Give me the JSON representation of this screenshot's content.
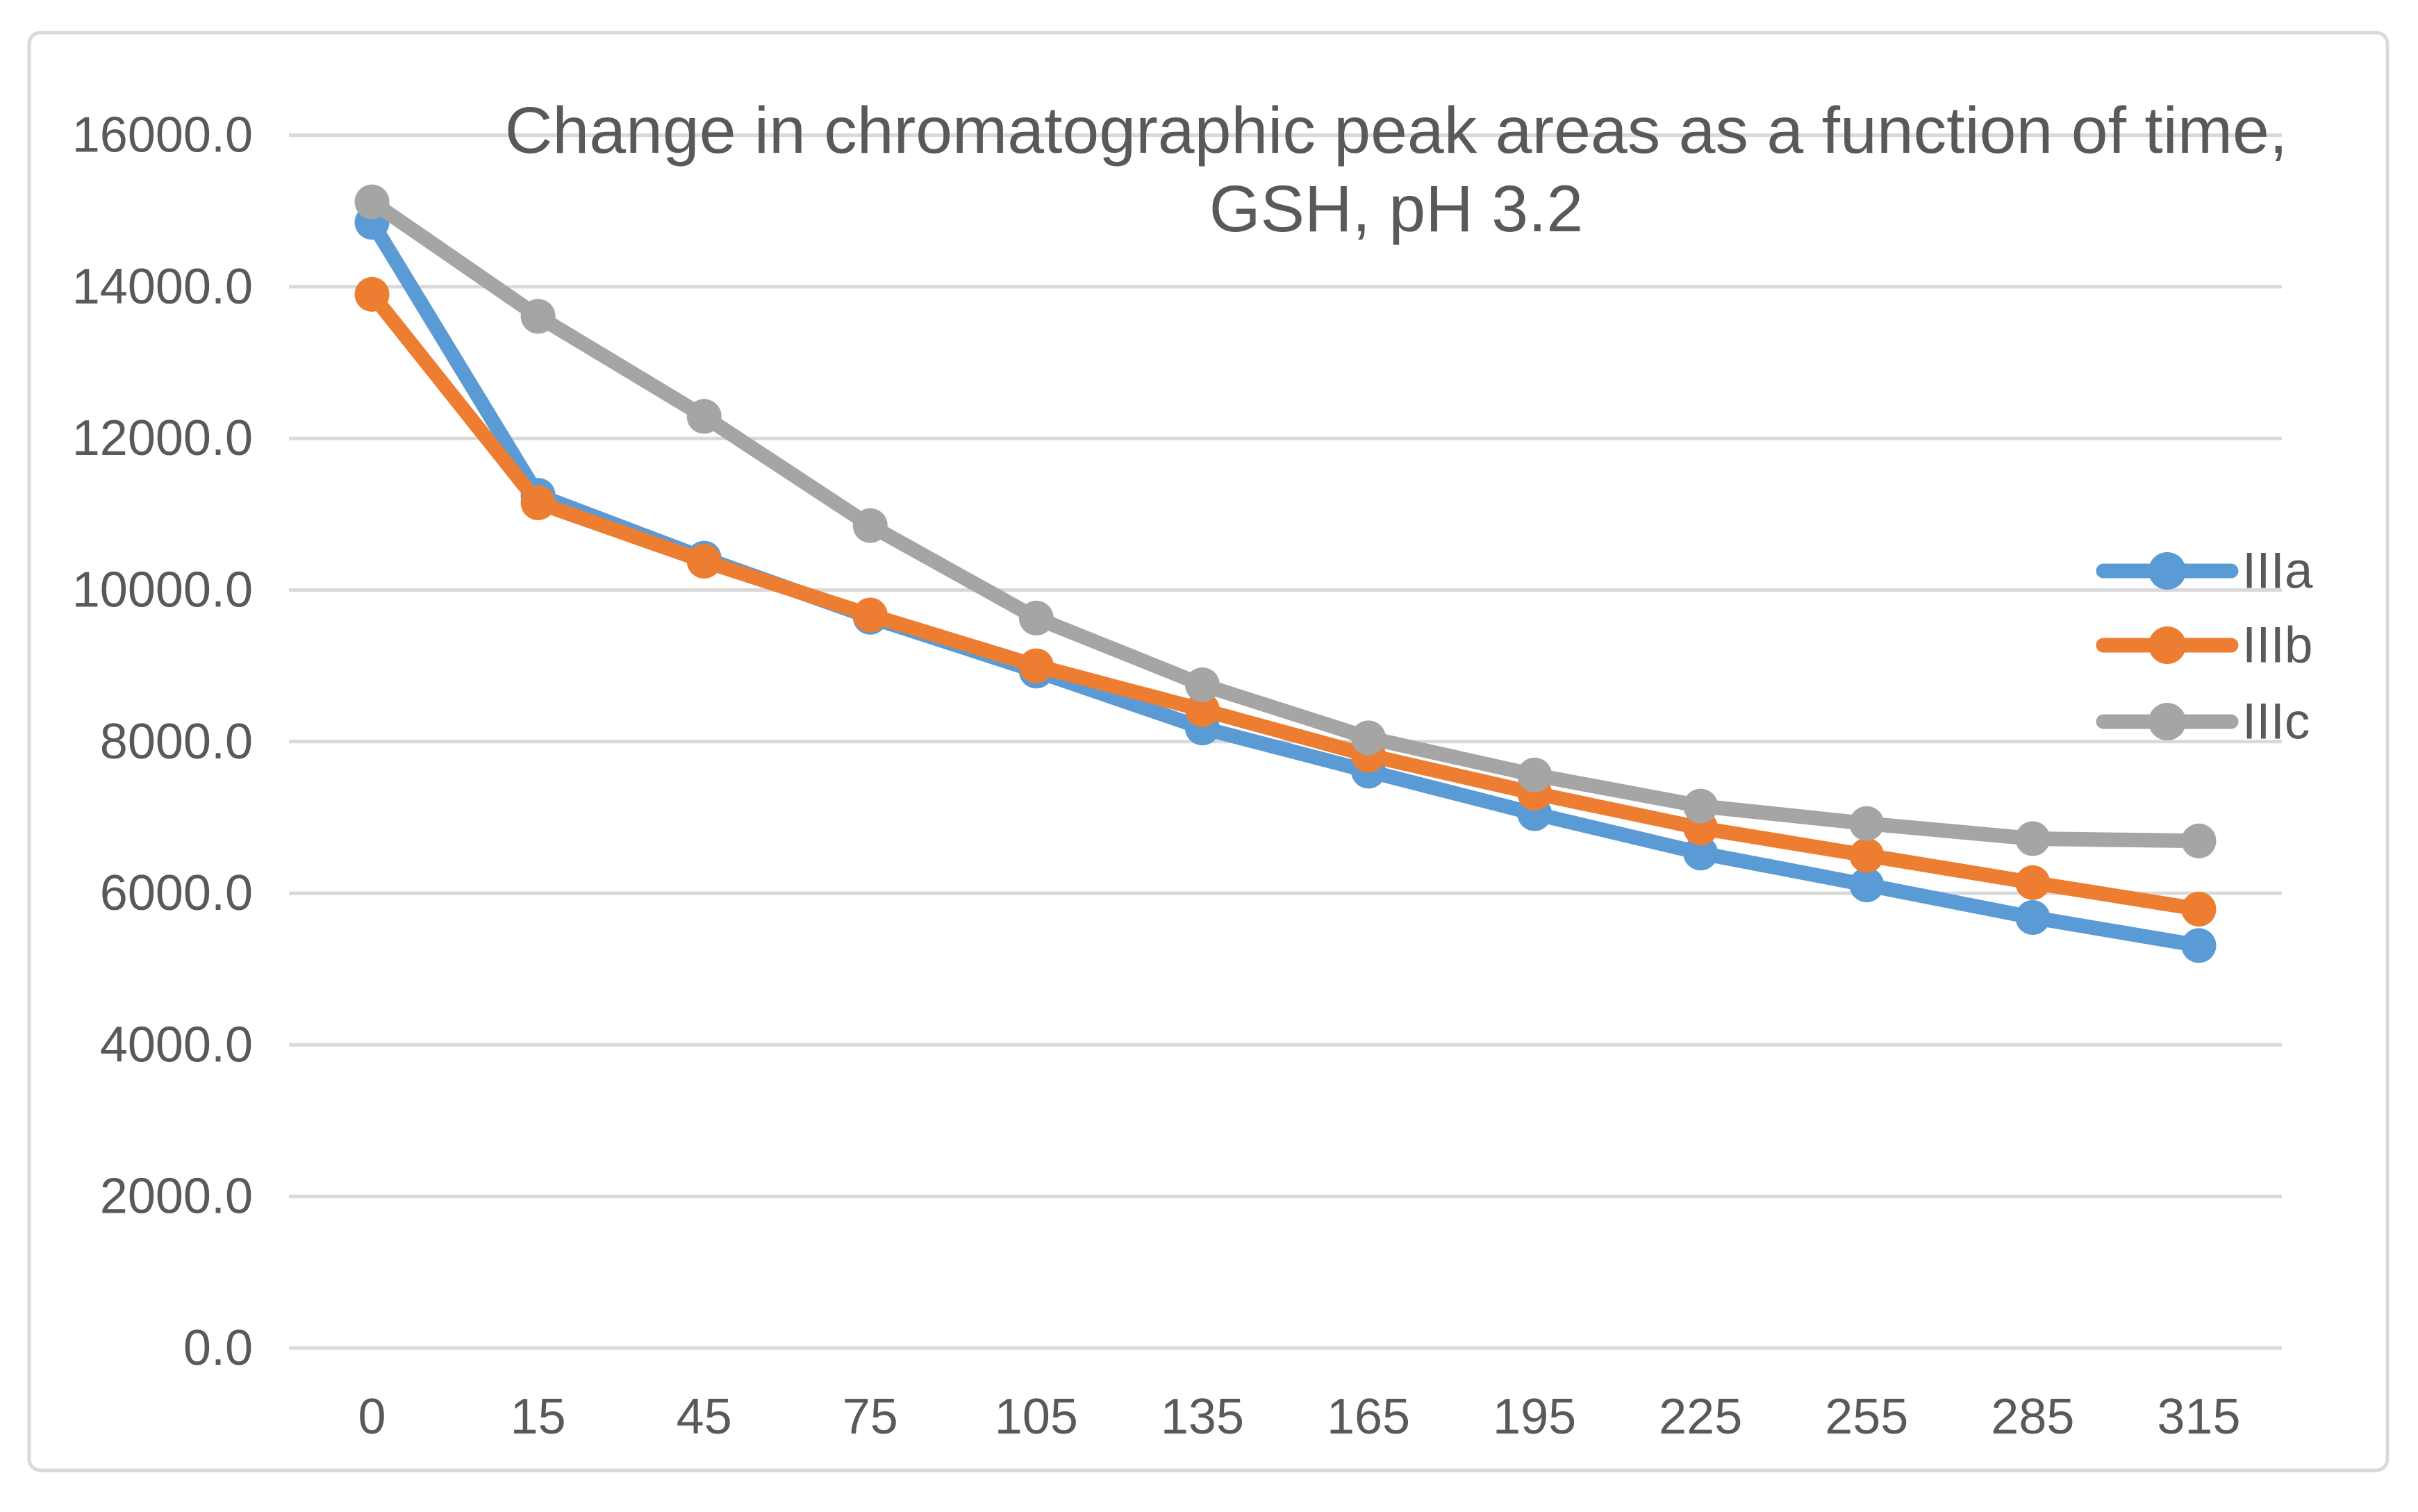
{
  "window": {
    "background": "#FFFFFF",
    "frame_border_color": "#D9D9D9"
  },
  "chart_data": {
    "type": "line",
    "title": "Change in chromatographic peak areas as a function of time, GSH, pH 3.2",
    "xlabel": "",
    "ylabel": "",
    "categories": [
      "0",
      "15",
      "45",
      "75",
      "105",
      "135",
      "165",
      "195",
      "225",
      "255",
      "285",
      "315"
    ],
    "y_ticks": [
      "0.0",
      "2000.0",
      "4000.0",
      "6000.0",
      "8000.0",
      "10000.0",
      "12000.0",
      "14000.0",
      "16000.0"
    ],
    "ylim": [
      0,
      16000
    ],
    "grid": "horizontal",
    "gridline_color": "#D9D9D9",
    "text_color": "#595959",
    "marker": "circle",
    "legend_position": "right-middle",
    "series": [
      {
        "name": "IIIa",
        "color": "#5B9BD5",
        "values": [
          14850,
          11250,
          10420,
          9640,
          8930,
          8180,
          7610,
          7050,
          6530,
          6110,
          5680,
          5310
        ]
      },
      {
        "name": "IIIb",
        "color": "#ED7D31",
        "values": [
          13900,
          11150,
          10380,
          9670,
          9000,
          8420,
          7820,
          7320,
          6860,
          6500,
          6140,
          5790
        ]
      },
      {
        "name": "IIIc",
        "color": "#A5A5A5",
        "values": [
          15120,
          13610,
          12290,
          10850,
          9630,
          8750,
          8050,
          7560,
          7150,
          6920,
          6720,
          6690
        ]
      }
    ]
  }
}
